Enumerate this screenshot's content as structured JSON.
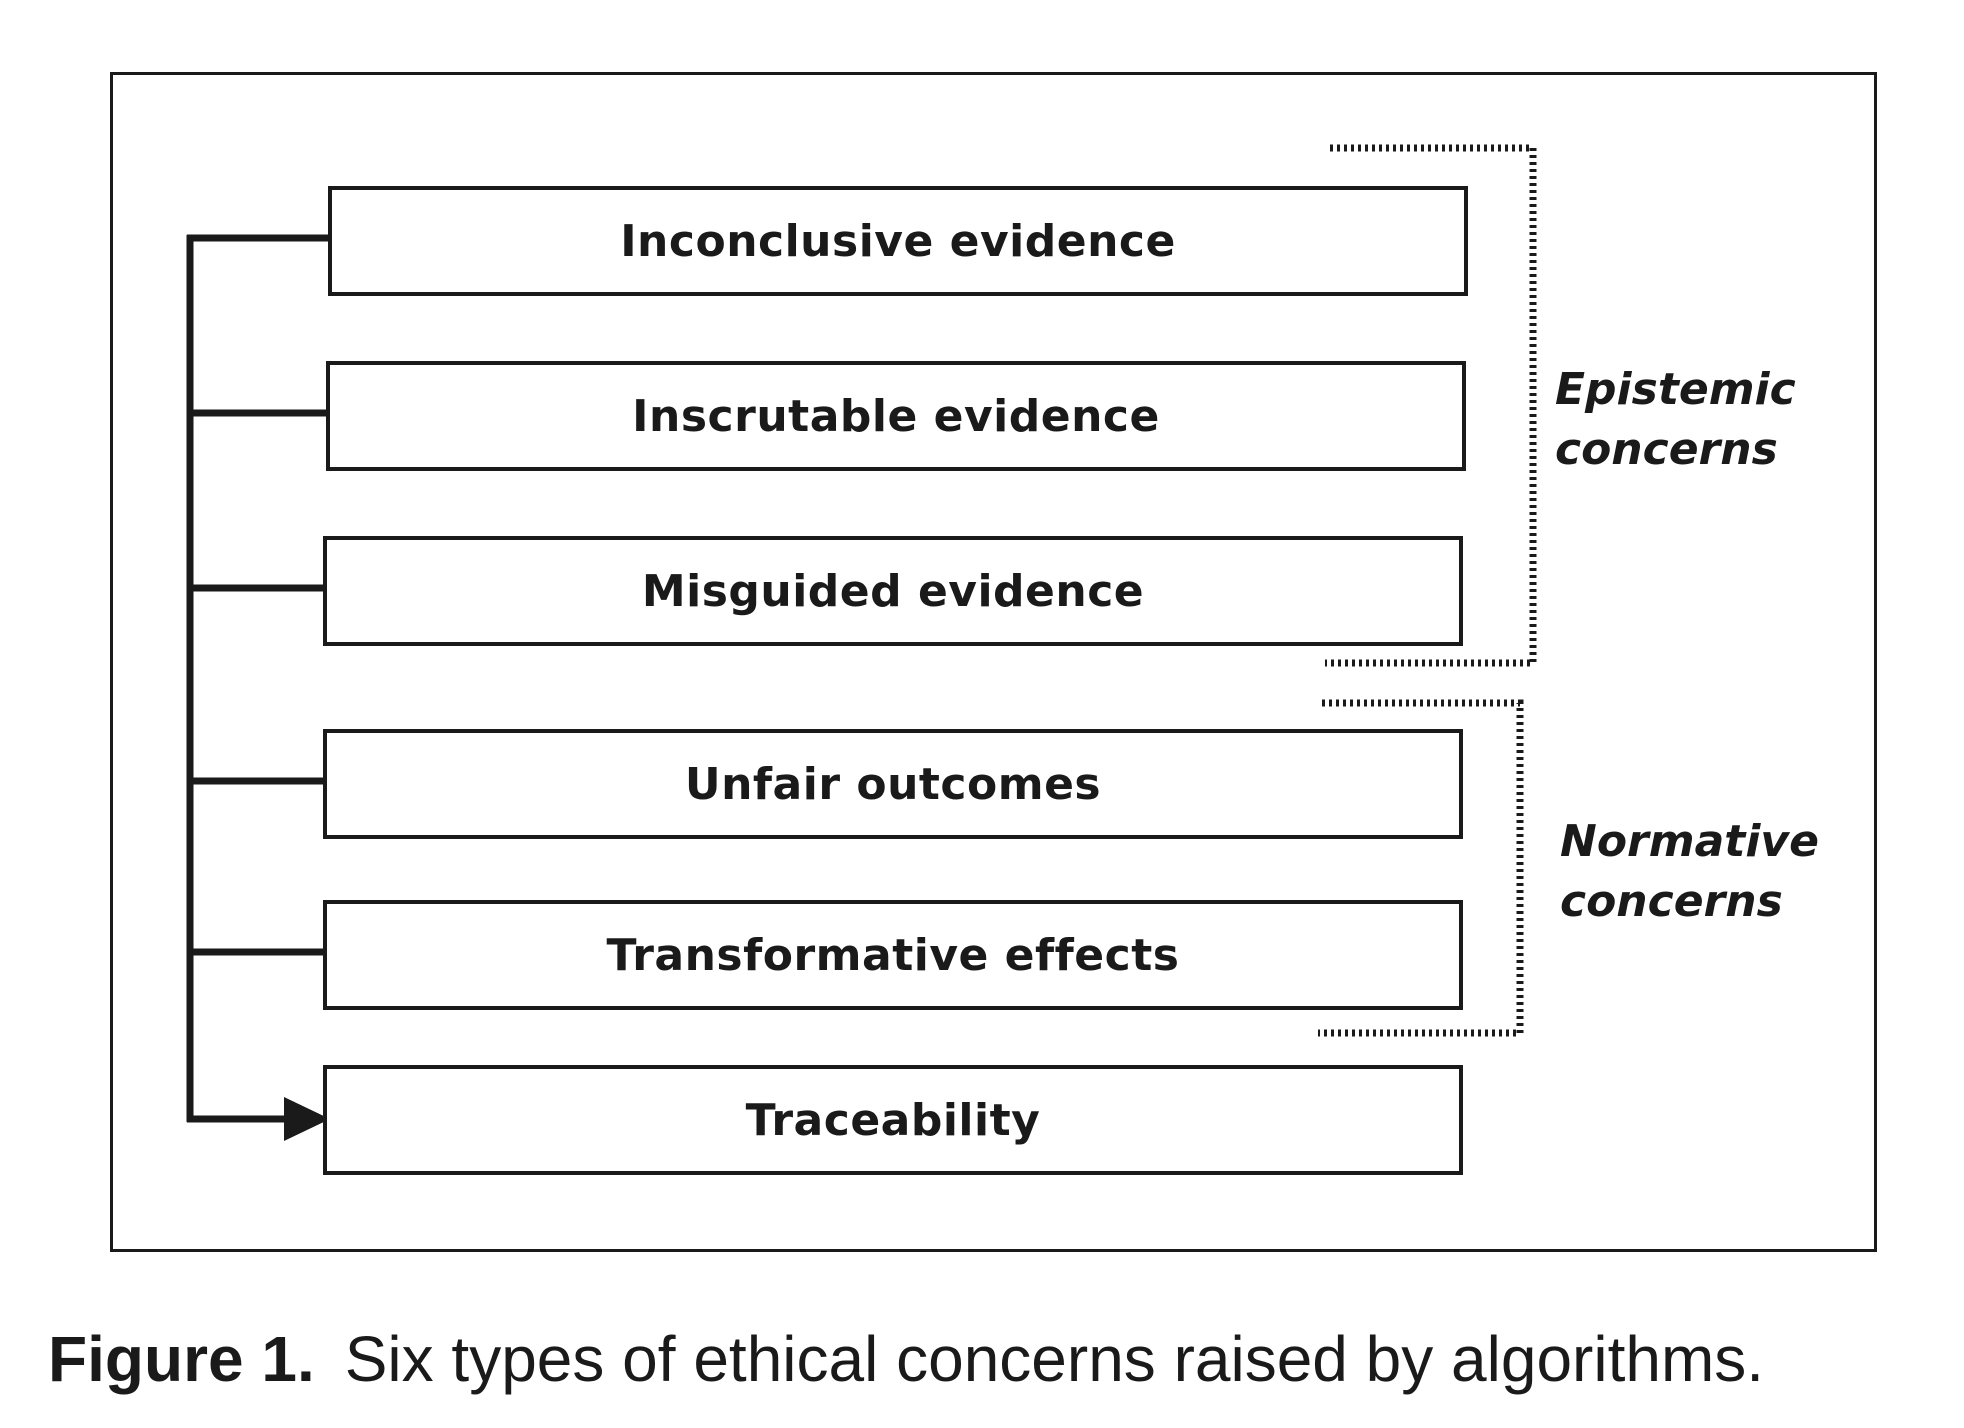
{
  "boxes": [
    {
      "id": "inconclusive",
      "label": "Inconclusive evidence"
    },
    {
      "id": "inscrutable",
      "label": "Inscrutable evidence"
    },
    {
      "id": "misguided",
      "label": "Misguided evidence"
    },
    {
      "id": "unfair",
      "label": "Unfair outcomes"
    },
    {
      "id": "transformative",
      "label": "Transformative effects"
    },
    {
      "id": "traceability",
      "label": "Traceability"
    }
  ],
  "groups": {
    "epistemic": {
      "line1": "Epistemic",
      "line2": "concerns"
    },
    "normative": {
      "line1": "Normative",
      "line2": "concerns"
    }
  },
  "caption": {
    "label": "Figure 1.",
    "text": "Six types of ethical concerns raised by algorithms."
  },
  "colors": {
    "stroke": "#1a1a1a",
    "background": "#ffffff"
  }
}
